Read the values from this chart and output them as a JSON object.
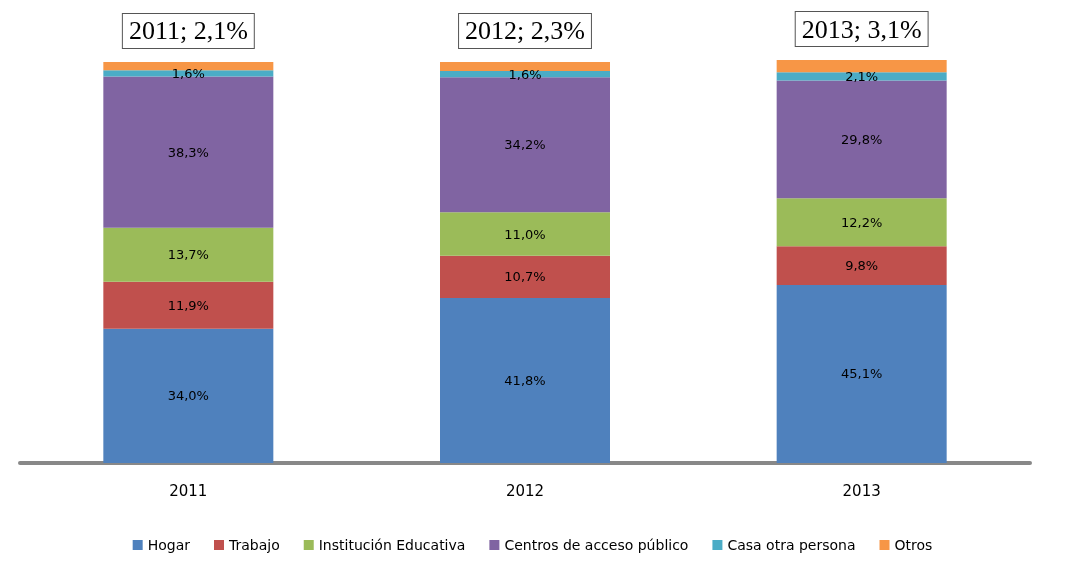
{
  "chart_data": {
    "type": "bar",
    "stacked": true,
    "categories": [
      "2011",
      "2012",
      "2013"
    ],
    "legend": "bottom",
    "series": [
      {
        "name": "Hogar",
        "color": "#4f81bd",
        "values": [
          34.0,
          41.8,
          45.1
        ],
        "value_labels": [
          "34,0%",
          "41,8%",
          "45,1%"
        ]
      },
      {
        "name": "Trabajo",
        "color": "#c0504d",
        "values": [
          11.9,
          10.7,
          9.8
        ],
        "value_labels": [
          "11,9%",
          "10,7%",
          "9,8%"
        ]
      },
      {
        "name": "Institución Educativa",
        "color": "#9bbb59",
        "values": [
          13.7,
          11.0,
          12.2
        ],
        "value_labels": [
          "13,7%",
          "11,0%",
          "12,2%"
        ]
      },
      {
        "name": "Centros de acceso público",
        "color": "#8064a2",
        "values": [
          38.3,
          34.2,
          29.8
        ],
        "value_labels": [
          "38,3%",
          "34,2%",
          "29,8%"
        ]
      },
      {
        "name": "Casa otra persona",
        "color": "#4bacc6",
        "values": [
          1.6,
          1.6,
          2.1
        ],
        "value_labels": [
          "1,6%",
          "1,6%",
          "2,1%"
        ]
      },
      {
        "name": "Otros",
        "color": "#f79646",
        "values": [
          2.1,
          2.3,
          3.1
        ],
        "value_labels": [
          "2011; 2,1%",
          "2012; 2,3%",
          "2013; 3,1%"
        ]
      }
    ]
  }
}
